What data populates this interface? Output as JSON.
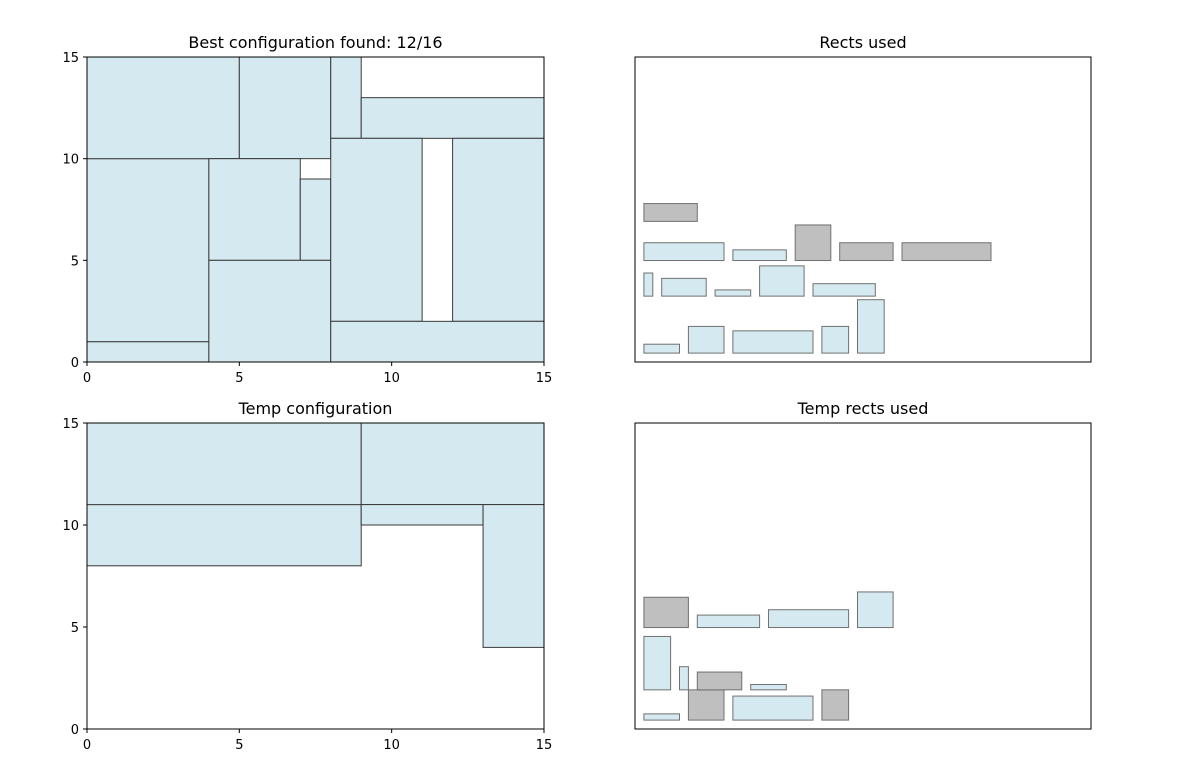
{
  "colors": {
    "fill_used": "#d4eaf0",
    "fill_unused": "#bfbfbf",
    "edge": "#3a3a3a",
    "edge_light": "#707070"
  },
  "chart_data": [
    {
      "type": "rect-packing",
      "title": "Best configuration found: 12/16",
      "xlim": [
        0,
        15
      ],
      "ylim": [
        0,
        15
      ],
      "xticks": [
        0,
        5,
        10,
        15
      ],
      "yticks": [
        0,
        5,
        10,
        15
      ],
      "rects": [
        {
          "x": 0,
          "y": 0,
          "w": 4,
          "h": 1
        },
        {
          "x": 0,
          "y": 1,
          "w": 4,
          "h": 9
        },
        {
          "x": 0,
          "y": 10,
          "w": 5,
          "h": 5
        },
        {
          "x": 5,
          "y": 10,
          "w": 3,
          "h": 5
        },
        {
          "x": 8,
          "y": 11,
          "w": 1,
          "h": 4
        },
        {
          "x": 9,
          "y": 11,
          "w": 6,
          "h": 2
        },
        {
          "x": 4,
          "y": 5,
          "w": 3,
          "h": 5
        },
        {
          "x": 7,
          "y": 5,
          "w": 1,
          "h": 4
        },
        {
          "x": 4,
          "y": 0,
          "w": 4,
          "h": 5
        },
        {
          "x": 8,
          "y": 2,
          "w": 3,
          "h": 9
        },
        {
          "x": 12,
          "y": 2,
          "w": 3,
          "h": 9
        },
        {
          "x": 8,
          "y": 0,
          "w": 7,
          "h": 2
        }
      ]
    },
    {
      "type": "rect-inventory",
      "title": "Rects used",
      "items": [
        {
          "x": 0.5,
          "y": 0.5,
          "w": 2,
          "h": 0.5,
          "used": true
        },
        {
          "x": 3,
          "y": 0.5,
          "w": 2,
          "h": 1.5,
          "used": true
        },
        {
          "x": 5.5,
          "y": 0.5,
          "w": 4.5,
          "h": 1.25,
          "used": true
        },
        {
          "x": 10.5,
          "y": 0.5,
          "w": 1.5,
          "h": 1.5,
          "used": true
        },
        {
          "x": 12.5,
          "y": 0.5,
          "w": 1.5,
          "h": 3,
          "used": true
        },
        {
          "x": 0.5,
          "y": 3.7,
          "w": 0.5,
          "h": 1.3,
          "used": true
        },
        {
          "x": 1.5,
          "y": 3.7,
          "w": 2.5,
          "h": 1,
          "used": true
        },
        {
          "x": 4.5,
          "y": 3.7,
          "w": 2,
          "h": 0.35,
          "used": true
        },
        {
          "x": 7,
          "y": 3.7,
          "w": 2.5,
          "h": 1.7,
          "used": true
        },
        {
          "x": 10,
          "y": 3.7,
          "w": 3.5,
          "h": 0.7,
          "used": true
        },
        {
          "x": 0.5,
          "y": 5.7,
          "w": 4.5,
          "h": 1,
          "used": true
        },
        {
          "x": 5.5,
          "y": 5.7,
          "w": 3,
          "h": 0.6,
          "used": true
        },
        {
          "x": 9,
          "y": 5.7,
          "w": 2,
          "h": 2,
          "used": false
        },
        {
          "x": 11.5,
          "y": 5.7,
          "w": 3,
          "h": 1,
          "used": false
        },
        {
          "x": 15,
          "y": 5.7,
          "w": 5,
          "h": 1,
          "used": false
        },
        {
          "x": 0.5,
          "y": 7.9,
          "w": 3,
          "h": 1,
          "used": false
        }
      ]
    },
    {
      "type": "rect-packing",
      "title": "Temp configuration",
      "xlim": [
        0,
        15
      ],
      "ylim": [
        0,
        15
      ],
      "xticks": [
        0,
        5,
        10,
        15
      ],
      "yticks": [
        0,
        5,
        10,
        15
      ],
      "rects": [
        {
          "x": 0,
          "y": 8,
          "w": 9,
          "h": 3
        },
        {
          "x": 0,
          "y": 11,
          "w": 9,
          "h": 4
        },
        {
          "x": 9,
          "y": 11,
          "w": 6,
          "h": 4
        },
        {
          "x": 9,
          "y": 10,
          "w": 4,
          "h": 1
        },
        {
          "x": 13,
          "y": 4,
          "w": 2,
          "h": 7
        }
      ]
    },
    {
      "type": "rect-inventory",
      "title": "Temp rects used",
      "items": [
        {
          "x": 0.5,
          "y": 0.5,
          "w": 2,
          "h": 0.35,
          "used": true
        },
        {
          "x": 3,
          "y": 0.5,
          "w": 2,
          "h": 1.7,
          "used": false
        },
        {
          "x": 5.5,
          "y": 0.5,
          "w": 4.5,
          "h": 1.35,
          "used": true
        },
        {
          "x": 10.5,
          "y": 0.5,
          "w": 1.5,
          "h": 1.7,
          "used": false
        },
        {
          "x": 0.5,
          "y": 2.2,
          "w": 1.5,
          "h": 3,
          "used": true
        },
        {
          "x": 2.5,
          "y": 2.2,
          "w": 0.5,
          "h": 1.3,
          "used": true
        },
        {
          "x": 3.5,
          "y": 2.2,
          "w": 2.5,
          "h": 1,
          "used": false
        },
        {
          "x": 6.5,
          "y": 2.2,
          "w": 2,
          "h": 0.3,
          "used": true
        },
        {
          "x": 0.5,
          "y": 5.7,
          "w": 2.5,
          "h": 1.7,
          "used": false
        },
        {
          "x": 3.5,
          "y": 5.7,
          "w": 3.5,
          "h": 0.7,
          "used": true
        },
        {
          "x": 7.5,
          "y": 5.7,
          "w": 4.5,
          "h": 1,
          "used": true
        },
        {
          "x": 12.5,
          "y": 5.7,
          "w": 2,
          "h": 2,
          "used": true
        }
      ]
    }
  ]
}
